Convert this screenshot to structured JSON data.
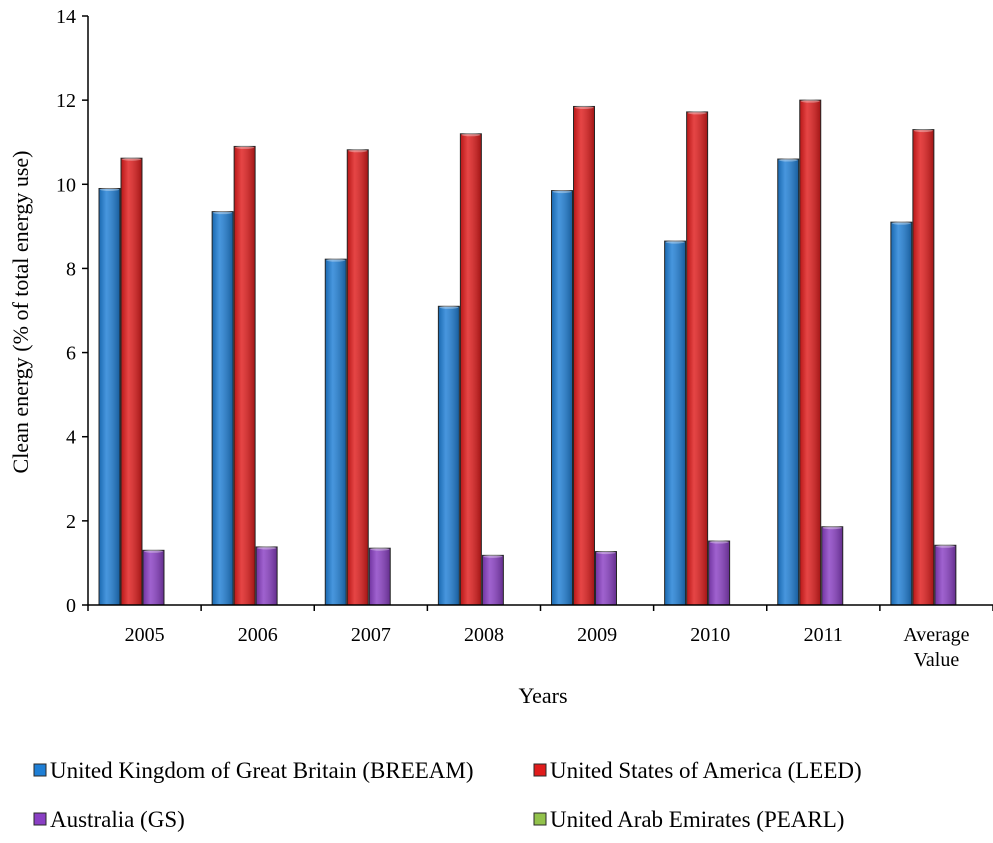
{
  "chart_data": {
    "type": "bar",
    "xlabel": "Years",
    "ylabel": "Clean energy (% of total energy use)",
    "ylim": [
      0,
      14
    ],
    "yticks": [
      0,
      2,
      4,
      6,
      8,
      10,
      12,
      14
    ],
    "grid": false,
    "legend_position": "bottom",
    "categories": [
      [
        "2005"
      ],
      [
        "2006"
      ],
      [
        "2007"
      ],
      [
        "2008"
      ],
      [
        "2009"
      ],
      [
        "2010"
      ],
      [
        "2011"
      ],
      [
        "Average",
        "Value"
      ]
    ],
    "series": [
      {
        "name": "United Kingdom of Great Britain (BREEAM)",
        "color": "#1f7fd6",
        "values": [
          9.9,
          9.35,
          8.22,
          7.1,
          9.85,
          8.65,
          10.6,
          9.1
        ]
      },
      {
        "name": "United States of America (LEED)",
        "color": "#e01c1c",
        "values": [
          10.62,
          10.9,
          10.82,
          11.2,
          11.85,
          11.72,
          12.0,
          11.3
        ]
      },
      {
        "name": "Australia (GS)",
        "color": "#8a3fc4",
        "values": [
          1.3,
          1.38,
          1.35,
          1.18,
          1.27,
          1.52,
          1.86,
          1.42
        ]
      },
      {
        "name": "United Arab Emirates (PEARL)",
        "color": "#92c24b",
        "values": [
          0,
          0,
          0,
          0,
          0,
          0,
          0,
          0
        ]
      }
    ]
  }
}
